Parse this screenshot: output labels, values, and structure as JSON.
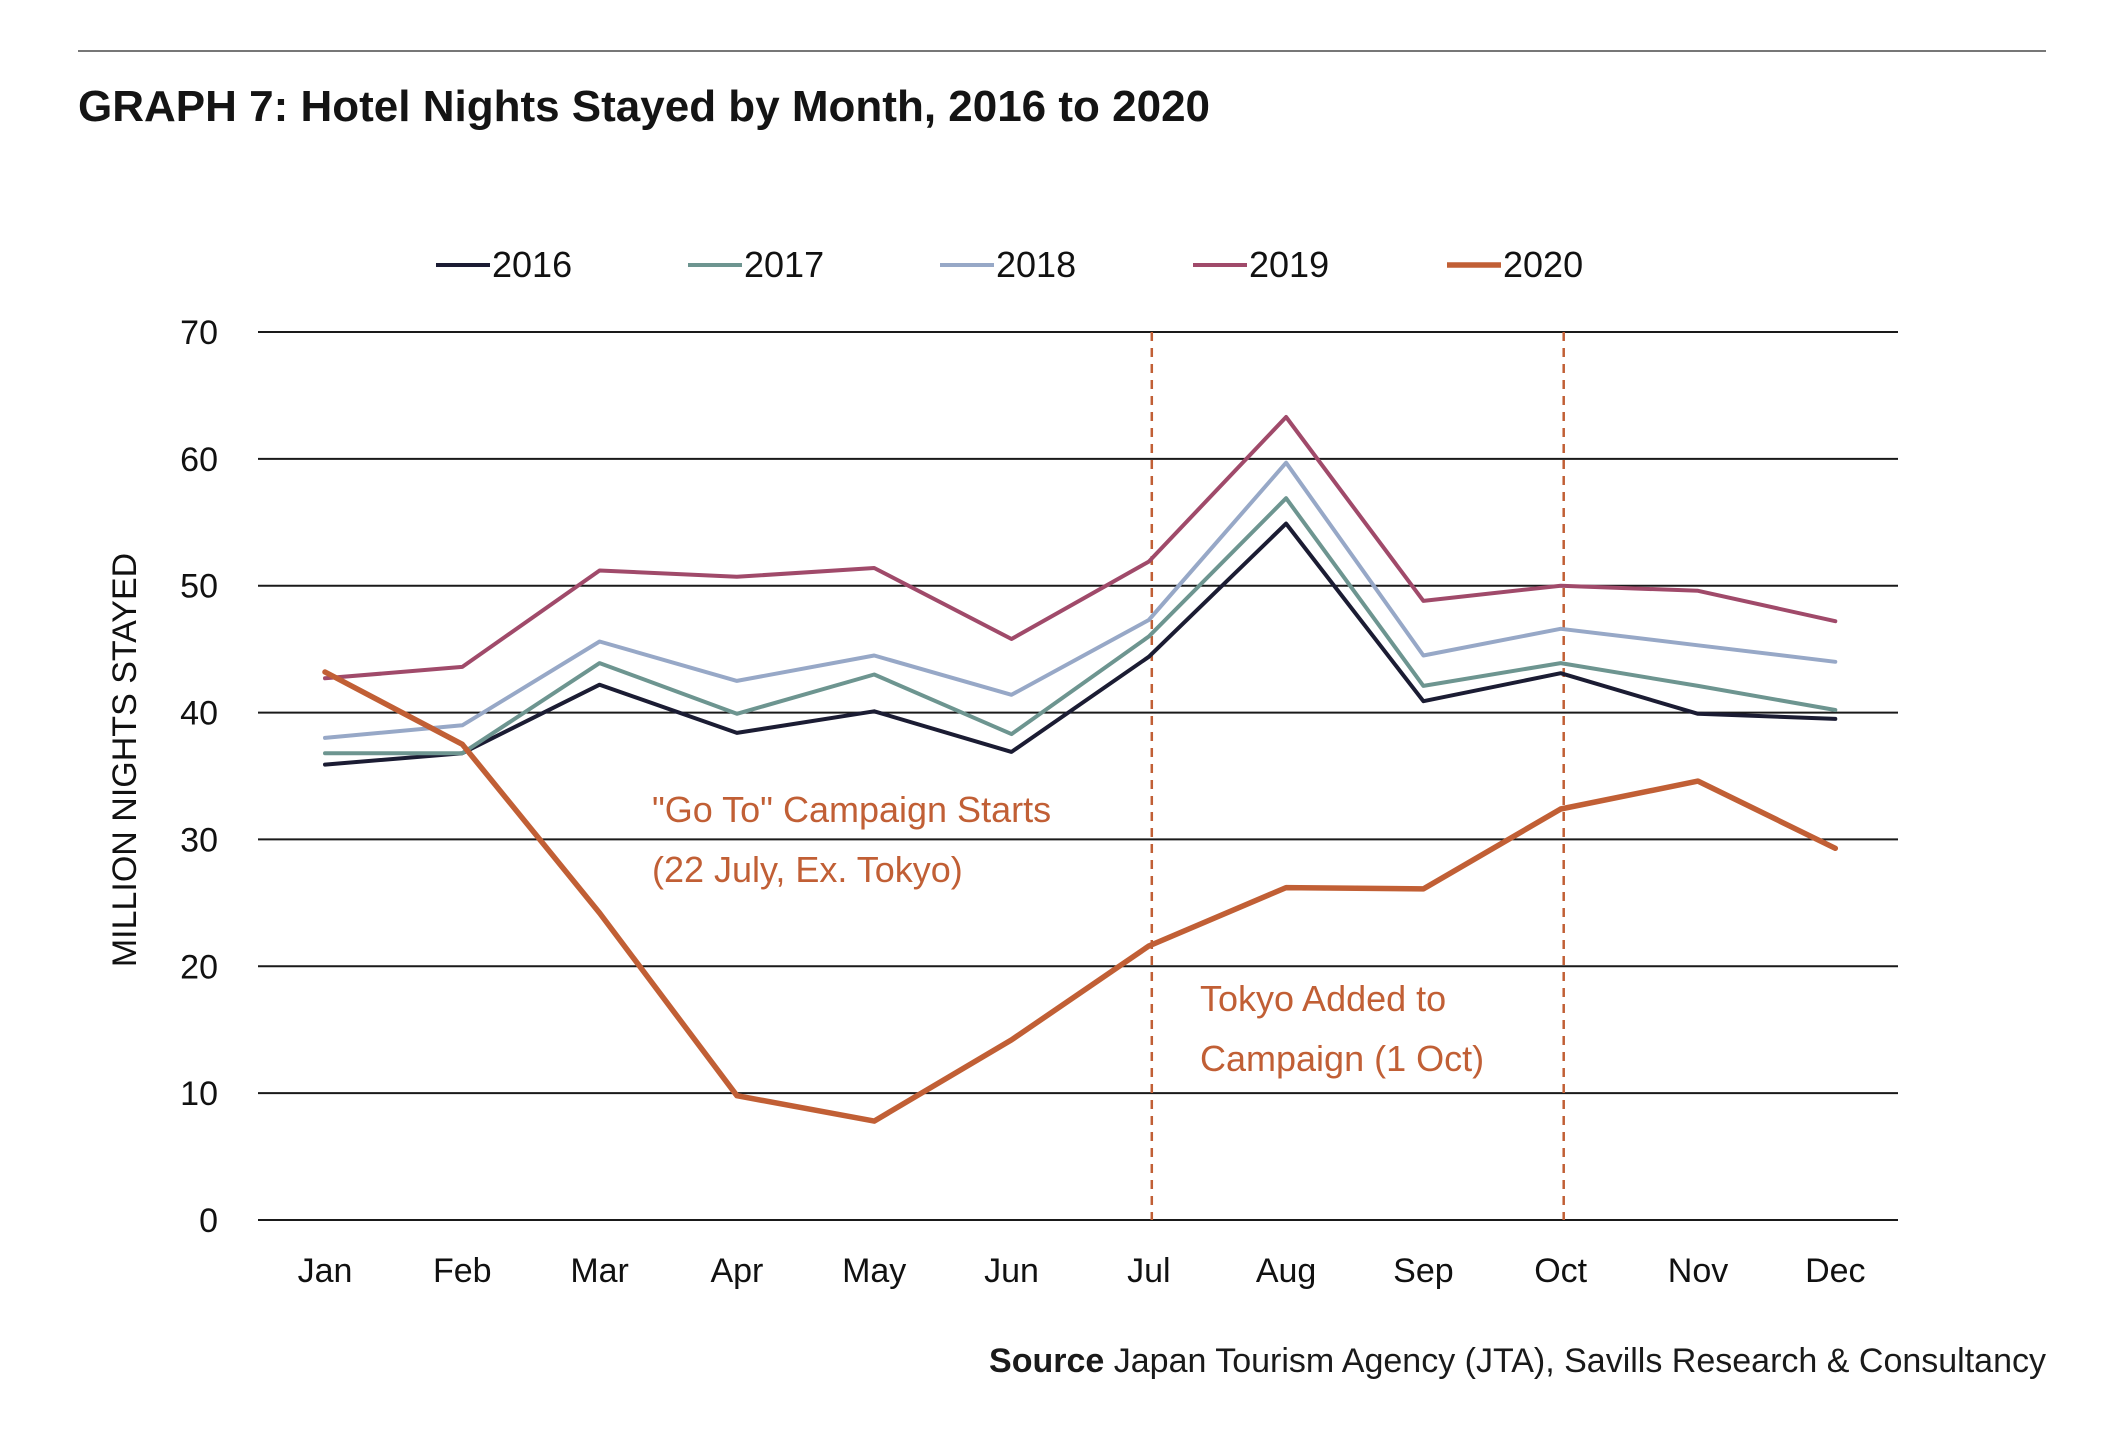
{
  "header": {
    "title": "GRAPH 7: Hotel Nights Stayed by Month, 2016 to 2020"
  },
  "footer": {
    "source_label": "Source",
    "source_text": "Japan Tourism Agency (JTA), Savills Research & Consultancy"
  },
  "chart_data": {
    "type": "line",
    "title": "GRAPH 7: Hotel Nights Stayed by Month, 2016 to 2020",
    "xlabel": "",
    "ylabel": "MILLION NIGHTS STAYED",
    "ylim": [
      0,
      70
    ],
    "yticks": [
      0,
      10,
      20,
      30,
      40,
      50,
      60,
      70
    ],
    "grid": true,
    "legend_position": "top",
    "categories": [
      "Jan",
      "Feb",
      "Mar",
      "Apr",
      "May",
      "Jun",
      "Jul",
      "Aug",
      "Sep",
      "Oct",
      "Nov",
      "Dec"
    ],
    "series": [
      {
        "name": "2016",
        "color": "#1b1c33",
        "values": [
          35.9,
          36.8,
          42.2,
          38.4,
          40.1,
          36.9,
          44.4,
          54.9,
          40.9,
          43.1,
          39.9,
          39.5
        ]
      },
      {
        "name": "2017",
        "color": "#6d9590",
        "values": [
          36.8,
          36.8,
          43.9,
          39.9,
          43.0,
          38.3,
          46.0,
          56.9,
          42.1,
          43.9,
          42.1,
          40.2
        ]
      },
      {
        "name": "2018",
        "color": "#97a8c7",
        "values": [
          38.0,
          39.0,
          45.6,
          42.5,
          44.5,
          41.4,
          47.3,
          59.7,
          44.5,
          46.6,
          45.3,
          44.0
        ]
      },
      {
        "name": "2019",
        "color": "#a04a6a",
        "values": [
          42.7,
          43.6,
          51.2,
          50.7,
          51.4,
          45.8,
          51.9,
          63.3,
          48.8,
          50.0,
          49.6,
          47.2
        ]
      },
      {
        "name": "2020",
        "color": "#c15f35",
        "values": [
          43.2,
          37.5,
          24.2,
          9.8,
          7.8,
          14.2,
          21.6,
          26.2,
          26.1,
          32.4,
          34.6,
          29.3
        ]
      }
    ],
    "annotations": [
      {
        "label": "campaign-start",
        "lines": [
          "\"Go To\" Campaign Starts",
          "(22 July, Ex. Tokyo)"
        ],
        "color": "#c15f35"
      },
      {
        "label": "tokyo-added",
        "lines": [
          "Tokyo Added to",
          "Campaign (1 Oct)"
        ],
        "color": "#c15f35"
      }
    ],
    "reference_lines": [
      {
        "name": "campaign-start-line",
        "at_category": "Jul",
        "style": "dashed",
        "color": "#c15f35"
      },
      {
        "name": "tokyo-added-line",
        "at_category": "Oct",
        "style": "dashed",
        "color": "#c15f35"
      }
    ]
  }
}
